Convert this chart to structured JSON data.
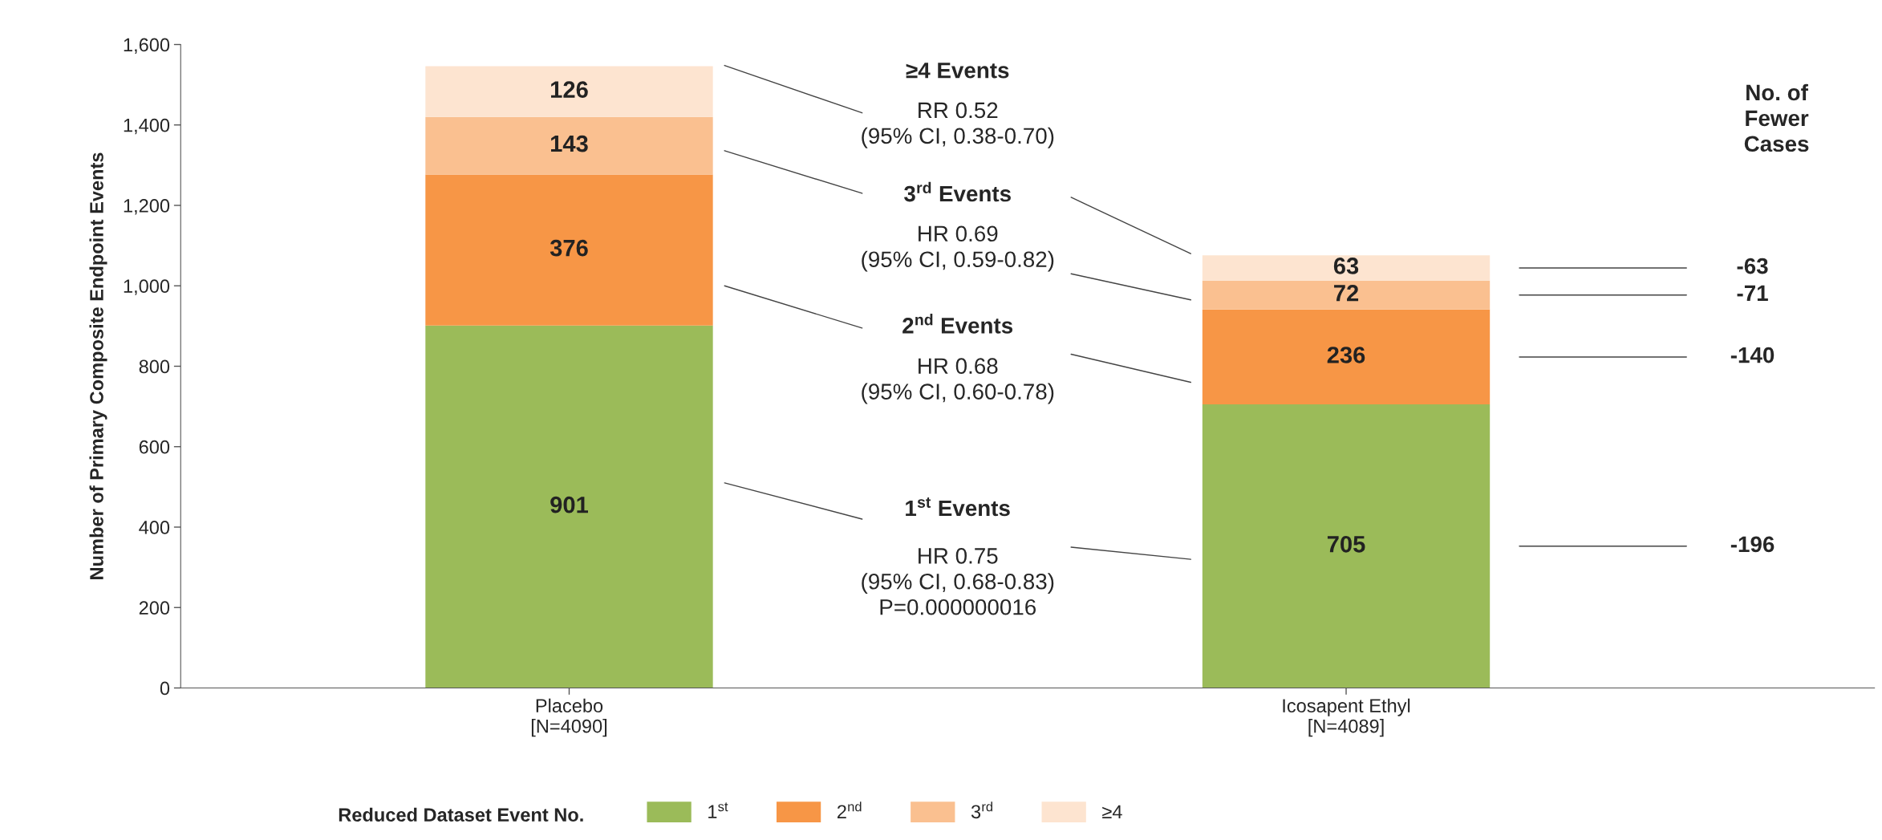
{
  "chart_data": {
    "type": "bar",
    "stacked": true,
    "ylabel": "Number of Primary Composite Endpoint Events",
    "categories": [
      "Placebo\n[N=4090]",
      "Icosapent Ethyl\n[N=4089]"
    ],
    "series": [
      {
        "name": "1$^{st}$",
        "color": "#9bbb59",
        "values": [
          901,
          705
        ]
      },
      {
        "name": "2$^{nd}$",
        "color": "#f79646",
        "values": [
          376,
          236
        ]
      },
      {
        "name": "3$^{rd}$",
        "color": "#fac090",
        "values": [
          143,
          72
        ]
      },
      {
        "name": "≥4",
        "color": "#fde4d0",
        "values": [
          126,
          63
        ]
      }
    ],
    "ylim": [
      0,
      1600
    ],
    "yticks": [
      0,
      200,
      400,
      600,
      800,
      {
        "value": 1000,
        "label": "1,000"
      },
      {
        "value": 1200,
        "label": "1,200"
      },
      {
        "value": 1400,
        "label": "1,400"
      },
      {
        "value": 1600,
        "label": "1,600"
      }
    ],
    "data_labels": true,
    "grid": false,
    "legend": "bottom",
    "legend_title": "Reduced Dataset Event No.",
    "annotations": [
      "≥4 Events",
      "RR 0.52\n(95% CI, 0.38-0.70)",
      "3$^{rd}$ Events",
      "HR 0.69\n(95% CI, 0.59-0.82)",
      "2$^{nd}$ Events",
      "HR 0.68\n(95% CI, 0.60-0.78)",
      "1$^{st}$ Events",
      "HR 0.75\n(95% CI, 0.68-0.83)\nP=0.000000016",
      "No. of\nFewer\nCases",
      "-63",
      "-71",
      "-140",
      "-196"
    ]
  }
}
